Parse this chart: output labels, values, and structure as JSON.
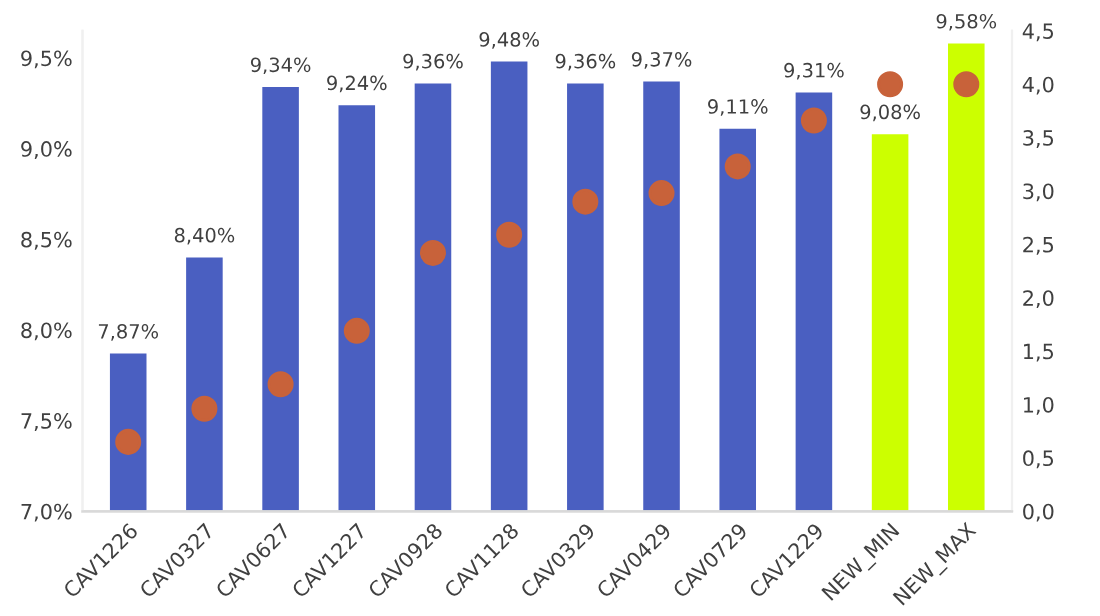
{
  "chart_data": {
    "type": "bar",
    "categories": [
      "CAV1226",
      "CAV0327",
      "CAV0627",
      "CAV1227",
      "CAV0928",
      "CAV1128",
      "CAV0329",
      "CAV0429",
      "CAV0729",
      "CAV1229",
      "NEW_MIN",
      "NEW_MAX"
    ],
    "series": [
      {
        "colors": [
          "#4a5fc1",
          "#4a5fc1",
          "#4a5fc1",
          "#4a5fc1",
          "#4a5fc1",
          "#4a5fc1",
          "#4a5fc1",
          "#4a5fc1",
          "#4a5fc1",
          "#4a5fc1",
          "#ccff00",
          "#ccff00"
        ],
        "values": [
          7.87,
          8.4,
          9.34,
          9.24,
          9.36,
          9.48,
          9.36,
          9.37,
          9.11,
          9.31,
          9.08,
          9.58
        ],
        "value_labels": [
          "7,87%",
          "8,40%",
          "9,34%",
          "9,24%",
          "9,36%",
          "9,48%",
          "9,36%",
          "9,37%",
          "9,11%",
          "9,31%",
          "9,08%",
          "9,58%"
        ]
      },
      {
        "type": "scatter",
        "axis": "y2",
        "color": "#c8623a",
        "marker": "circle",
        "values": [
          0.65,
          0.96,
          1.19,
          1.69,
          2.42,
          2.59,
          2.9,
          2.98,
          3.23,
          3.66,
          4.0,
          4.0
        ]
      }
    ],
    "ylim": [
      7.0,
      9.65
    ],
    "yticks": [
      {
        "value": 7.0,
        "label": "7,0%"
      },
      {
        "value": 7.5,
        "label": "7,5%"
      },
      {
        "value": 8.0,
        "label": "8,0%"
      },
      {
        "value": 8.5,
        "label": "8,5%"
      },
      {
        "value": 9.0,
        "label": "9,0%"
      },
      {
        "value": 9.5,
        "label": "9,5%"
      }
    ],
    "y2lim": [
      0,
      4.5
    ],
    "y2ticks": [
      {
        "value": 0,
        "label": "0,0"
      },
      {
        "value": 0.5,
        "label": "0,5"
      },
      {
        "value": 1.0,
        "label": "1,0"
      },
      {
        "value": 1.5,
        "label": "1,5"
      },
      {
        "value": 2.0,
        "label": "2,0"
      },
      {
        "value": 2.5,
        "label": "2,5"
      },
      {
        "value": 3.0,
        "label": "3,0"
      },
      {
        "value": 3.5,
        "label": "3,5"
      },
      {
        "value": 4.0,
        "label": "4,0"
      },
      {
        "value": 4.5,
        "label": "4,5"
      }
    ],
    "grid": false,
    "legend": false
  }
}
